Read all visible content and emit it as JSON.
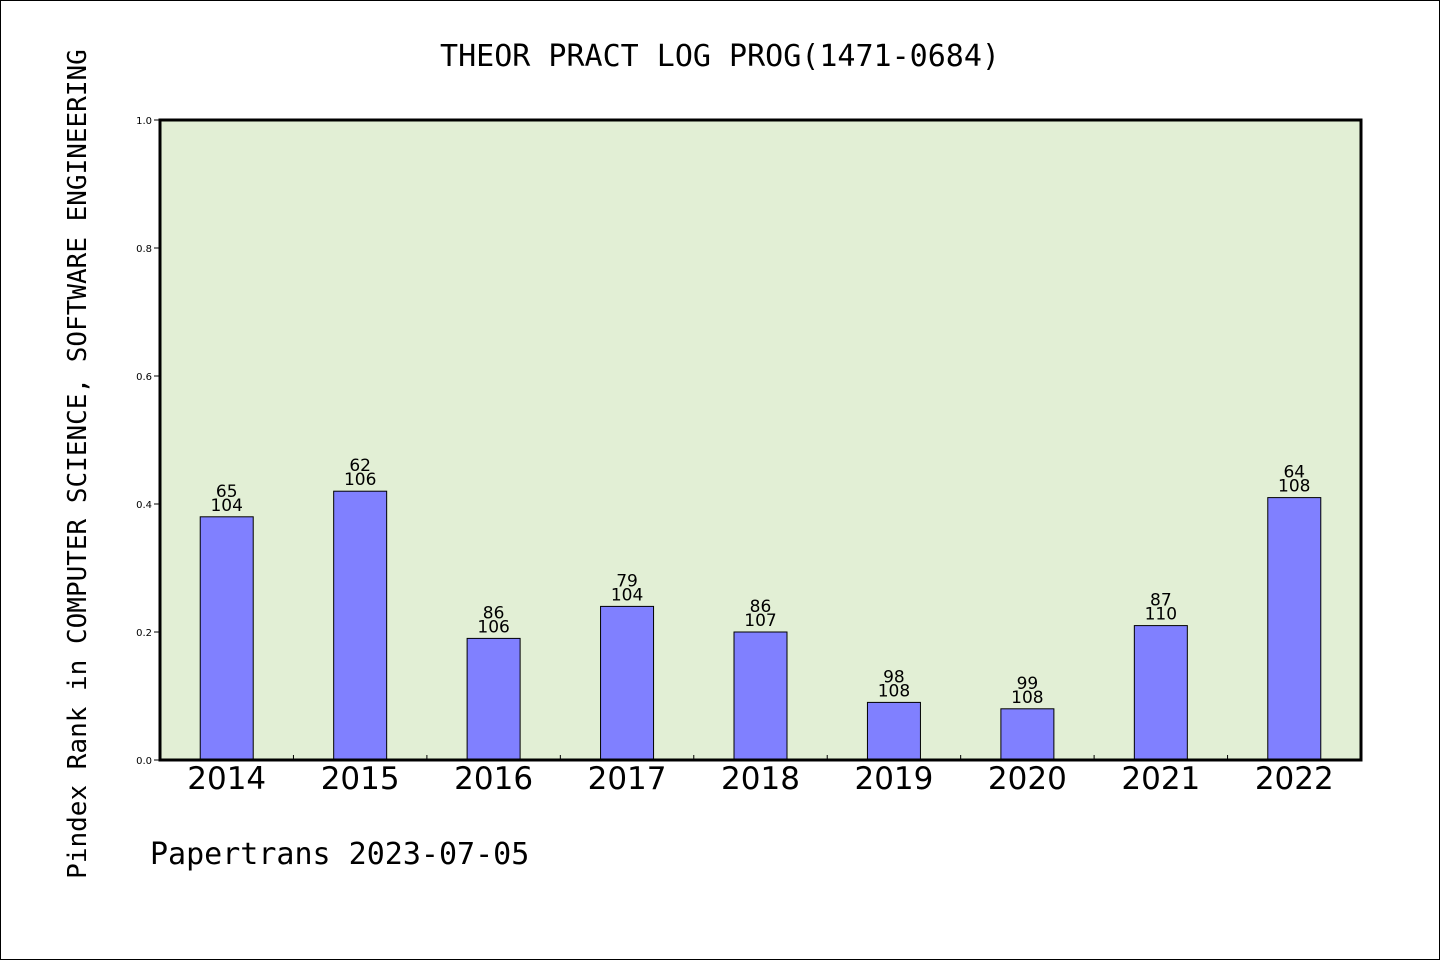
{
  "chart_data": {
    "type": "bar",
    "title": "THEOR PRACT LOG PROG(1471-0684)",
    "ylabel": "Pindex Rank in COMPUTER SCIENCE, SOFTWARE ENGINEERING",
    "xlabel": "",
    "footer": "Papertrans 2023-07-05",
    "categories": [
      "2014",
      "2015",
      "2016",
      "2017",
      "2018",
      "2019",
      "2020",
      "2021",
      "2022"
    ],
    "values": [
      0.38,
      0.42,
      0.19,
      0.24,
      0.2,
      0.09,
      0.08,
      0.21,
      0.41
    ],
    "labels_top": [
      "65",
      "62",
      "86",
      "79",
      "86",
      "98",
      "99",
      "87",
      "64"
    ],
    "labels_bottom": [
      "104",
      "106",
      "106",
      "104",
      "107",
      "108",
      "108",
      "110",
      "108"
    ],
    "ylim": [
      0,
      1.0
    ],
    "yticks": [
      "0.0",
      "0.2",
      "0.4",
      "0.6",
      "0.8",
      "1.0"
    ],
    "grid": false,
    "colors": {
      "bar": "#8080ff",
      "plot_background": "#e2efd5",
      "axis": "#000000"
    }
  }
}
